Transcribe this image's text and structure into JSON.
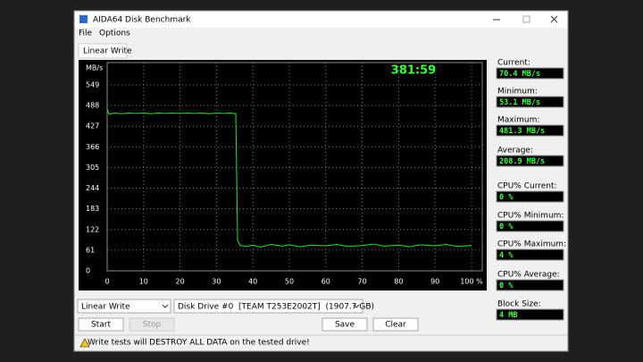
{
  "window": {
    "title": "AIDA64 Disk Benchmark"
  },
  "menu": [
    "File",
    "Options"
  ],
  "tab": "Linear Write",
  "chart_data": {
    "type": "line",
    "y_label": "MB/s",
    "timer": "381:59",
    "x": [
      0,
      0.5,
      2,
      4,
      6,
      8,
      10,
      12,
      14,
      16,
      18,
      20,
      22,
      24,
      26,
      28,
      30,
      32,
      34,
      35.3,
      35.8,
      36.5,
      38,
      40,
      42,
      45,
      48,
      50,
      53,
      56,
      60,
      63,
      66,
      70,
      73,
      76,
      80,
      83,
      86,
      90,
      93,
      96,
      100
    ],
    "values": [
      478,
      462,
      466,
      464,
      466,
      465,
      466,
      464,
      466,
      465,
      466,
      465,
      466,
      465,
      466,
      464,
      466,
      465,
      466,
      464,
      90,
      75,
      72,
      76,
      70,
      78,
      73,
      77,
      71,
      76,
      74,
      78,
      72,
      75,
      79,
      73,
      76,
      71,
      77,
      74,
      78,
      72,
      75
    ],
    "color": "#1ee81e",
    "xlim": [
      0,
      100
    ],
    "ylim": [
      0,
      549
    ],
    "xticks": [
      0,
      10,
      20,
      30,
      40,
      50,
      60,
      70,
      80,
      90,
      {
        "value": 100,
        "label": "100 %"
      }
    ],
    "yticks": [
      0,
      61,
      122,
      183,
      244,
      305,
      366,
      427,
      488,
      549
    ],
    "grid": true
  },
  "stats": [
    {
      "label": "Current:",
      "value": "70.4 MB/s"
    },
    {
      "label": "Minimum:",
      "value": "53.1 MB/s"
    },
    {
      "label": "Maximum:",
      "value": "481.3 MB/s"
    },
    {
      "label": "Average:",
      "value": "208.9 MB/s"
    },
    {
      "label": "CPU% Current:",
      "value": "0 %"
    },
    {
      "label": "CPU% Minimum:",
      "value": "0 %"
    },
    {
      "label": "CPU% Maximum:",
      "value": "4 %"
    },
    {
      "label": "CPU% Average:",
      "value": "0 %"
    },
    {
      "label": "Block Size:",
      "value": "4 MB"
    }
  ],
  "controls": {
    "test": "Linear Write",
    "drive": "Disk Drive #0  [TEAM T253E2002T]  (1907.7 GB)",
    "buttons": [
      "Start",
      "Stop",
      "Save",
      "Clear"
    ]
  },
  "warning": "Write tests will DESTROY ALL DATA on the tested drive!"
}
